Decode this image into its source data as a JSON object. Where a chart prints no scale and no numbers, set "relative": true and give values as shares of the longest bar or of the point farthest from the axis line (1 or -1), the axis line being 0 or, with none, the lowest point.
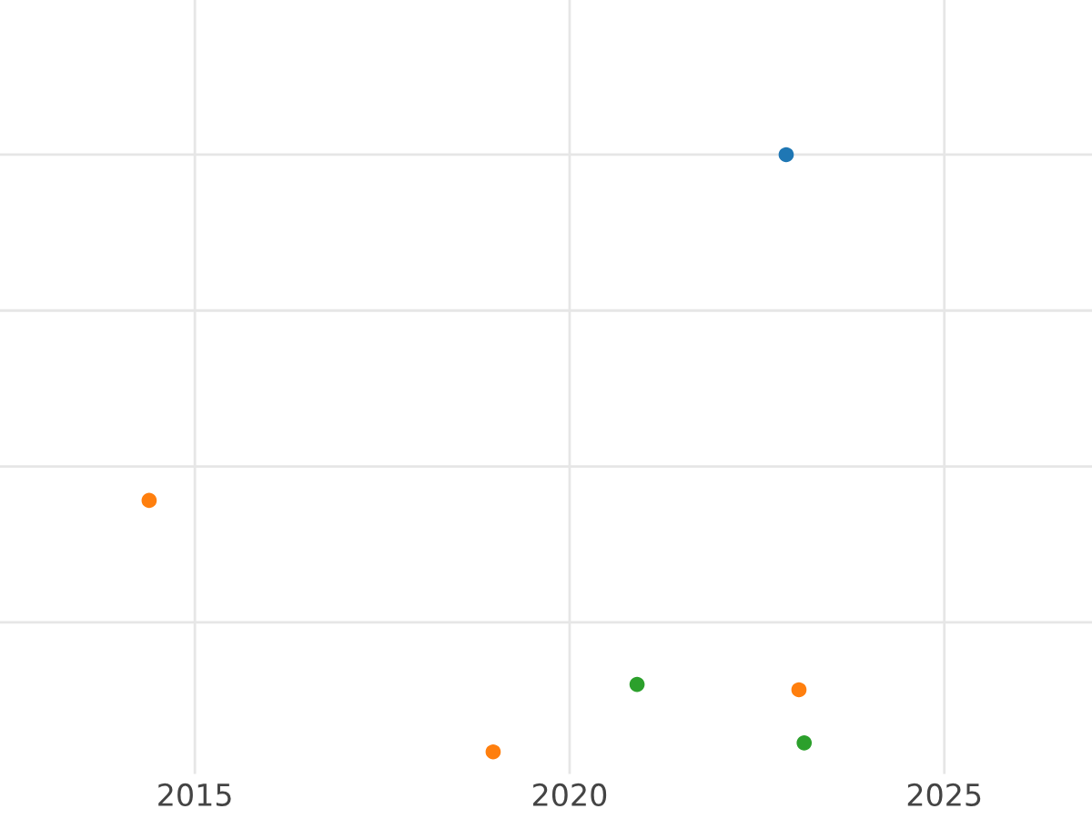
{
  "chart_data": {
    "type": "scatter",
    "relative": true,
    "series": [
      {
        "color": "#1f77b4",
        "x": [
          2022.89
        ],
        "values": [
          1
        ]
      },
      {
        "color": "#ff7f0e",
        "x": [
          2014.39,
          2018.98,
          2023.06
        ],
        "values": [
          0.421,
          0,
          0.104
        ]
      },
      {
        "color": "#2ca02c",
        "x": [
          2020.9,
          2023.13
        ],
        "values": [
          0.113,
          0.015
        ]
      }
    ],
    "xlim": [
      2012.4,
      2026.97
    ],
    "xticks": [
      2015,
      2020,
      2025
    ],
    "grid": true,
    "marker": "circle",
    "tick_labels": "x"
  }
}
